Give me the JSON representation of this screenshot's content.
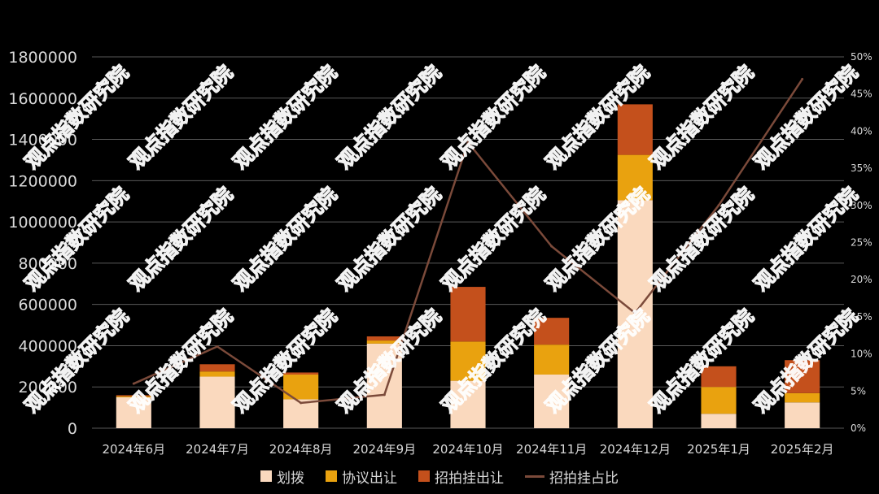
{
  "chart_data": {
    "type": "bar",
    "stacked": true,
    "categories": [
      "2024年6月",
      "2024年7月",
      "2024年8月",
      "2024年9月",
      "2024年10月",
      "2024年11月",
      "2024年12月",
      "2025年1月",
      "2025年2月"
    ],
    "series": [
      {
        "name": "划拨",
        "type": "bar",
        "axis": "left",
        "values": [
          150000,
          250000,
          140000,
          410000,
          230000,
          260000,
          1105000,
          70000,
          125000
        ]
      },
      {
        "name": "协议出让",
        "type": "bar",
        "axis": "left",
        "values": [
          5000,
          25000,
          120000,
          15000,
          190000,
          145000,
          220000,
          130000,
          45000
        ]
      },
      {
        "name": "招拍挂出让",
        "type": "bar",
        "axis": "left",
        "values": [
          5000,
          35000,
          10000,
          20000,
          265000,
          130000,
          245000,
          100000,
          160000
        ]
      },
      {
        "name": "招拍挂占比",
        "type": "line",
        "axis": "right",
        "values": [
          0.06,
          0.11,
          0.034,
          0.045,
          0.385,
          0.245,
          0.155,
          0.3,
          0.47
        ]
      }
    ],
    "ylim": [
      0,
      1800000
    ],
    "y_ticks": [
      "0",
      "200000",
      "400000",
      "600000",
      "800000",
      "1000000",
      "1200000",
      "1400000",
      "1600000",
      "1800000"
    ],
    "y2lim": [
      0,
      0.5
    ],
    "y2_ticks": [
      "0%",
      "5%",
      "10%",
      "15%",
      "20%",
      "25%",
      "30%",
      "35%",
      "40%",
      "45%",
      "50%"
    ],
    "grid": true,
    "legend": "bottom",
    "watermark": "观点指数研究院"
  },
  "colors": {
    "background": "#000000",
    "划拨": "#FAD9BE",
    "协议出让": "#E9A20F",
    "招拍挂出让": "#C4501C",
    "招拍挂占比": "#7B4A3A",
    "grid": "#595959",
    "axis_text": "#d9d9d9"
  }
}
